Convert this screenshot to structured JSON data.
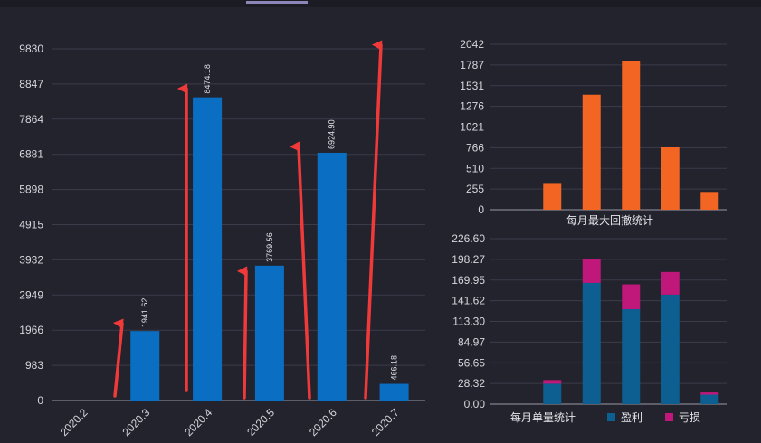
{
  "chart_data": [
    {
      "type": "bar",
      "categories": [
        "2020.2",
        "2020.3",
        "2020.4",
        "2020.5",
        "2020.6",
        "2020.7"
      ],
      "values": [
        0,
        1941.62,
        8474.18,
        3769.56,
        6924.9,
        466.18
      ],
      "data_labels": [
        "",
        "1941.62",
        "8474.18",
        "3769.56",
        "6924.90",
        "466.18"
      ],
      "yticks": [
        "0",
        "983",
        "1966",
        "2949",
        "3932",
        "4915",
        "5898",
        "6881",
        "7864",
        "8847",
        "9830"
      ],
      "ylim": [
        0,
        9830
      ],
      "color": "#0a6fc2",
      "annotations": "red upward arrows",
      "grid": true
    },
    {
      "type": "bar",
      "title": "每月最大回撤统计",
      "categories": [
        "",
        "",
        "",
        "",
        "",
        ""
      ],
      "values": [
        0,
        330,
        1420,
        1830,
        770,
        220
      ],
      "yticks": [
        "0",
        "255",
        "510",
        "766",
        "1021",
        "1276",
        "1531",
        "1787",
        "2042"
      ],
      "ylim": [
        0,
        2042
      ],
      "color": "#f26522",
      "grid": true
    },
    {
      "type": "bar",
      "stacked": true,
      "title": "每月单量统计",
      "categories": [
        "",
        "",
        "",
        "",
        "",
        ""
      ],
      "series": [
        {
          "name": "盈利",
          "values": [
            0,
            28,
            166,
            130,
            150,
            13
          ],
          "color": "#0e5f91"
        },
        {
          "name": "亏损",
          "values": [
            0,
            5,
            33,
            34,
            31,
            3
          ],
          "color": "#c0187a"
        }
      ],
      "yticks": [
        "0.00",
        "28.32",
        "56.65",
        "84.97",
        "113.30",
        "141.62",
        "169.95",
        "198.27",
        "226.60"
      ],
      "ylim": [
        0,
        226.6
      ],
      "grid": true,
      "legend": "bottom"
    }
  ]
}
